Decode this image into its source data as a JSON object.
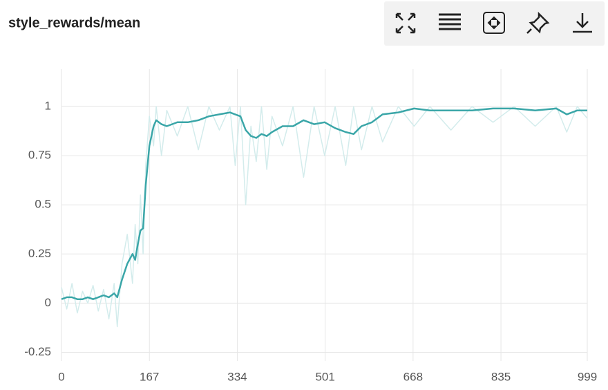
{
  "chart_data": {
    "type": "line",
    "title": "style_rewards/mean",
    "x": [
      0,
      10,
      20,
      30,
      40,
      50,
      60,
      70,
      80,
      90,
      100,
      106,
      115,
      125,
      135,
      140,
      145,
      150,
      155,
      160,
      167,
      175,
      180,
      190,
      200,
      220,
      240,
      260,
      280,
      300,
      320,
      330,
      340,
      350,
      360,
      370,
      380,
      390,
      400,
      420,
      440,
      460,
      480,
      500,
      520,
      540,
      555,
      570,
      590,
      610,
      640,
      670,
      700,
      740,
      780,
      820,
      860,
      900,
      940,
      960,
      980,
      999
    ],
    "series": [
      {
        "color": "#d3ecec",
        "values": [
          0.08,
          -0.03,
          0.1,
          -0.05,
          0.06,
          0.0,
          0.09,
          -0.04,
          0.07,
          -0.08,
          0.1,
          -0.12,
          0.2,
          0.35,
          0.1,
          0.4,
          0.2,
          0.55,
          0.25,
          0.7,
          0.95,
          0.8,
          1.0,
          0.75,
          0.98,
          0.85,
          1.0,
          0.78,
          1.0,
          0.88,
          1.0,
          0.7,
          1.0,
          0.5,
          0.9,
          0.72,
          1.0,
          0.68,
          0.95,
          0.8,
          1.0,
          0.64,
          1.0,
          0.75,
          1.0,
          0.7,
          1.0,
          0.78,
          1.0,
          0.82,
          1.0,
          0.9,
          1.0,
          0.88,
          1.0,
          0.92,
          1.0,
          0.9,
          1.0,
          0.87,
          1.0,
          0.94
        ]
      },
      {
        "color": "#3aa6a8",
        "values": [
          0.02,
          0.03,
          0.03,
          0.02,
          0.02,
          0.03,
          0.02,
          0.03,
          0.04,
          0.03,
          0.05,
          0.03,
          0.12,
          0.2,
          0.25,
          0.22,
          0.3,
          0.37,
          0.38,
          0.6,
          0.8,
          0.9,
          0.93,
          0.91,
          0.9,
          0.92,
          0.92,
          0.93,
          0.95,
          0.96,
          0.97,
          0.96,
          0.95,
          0.88,
          0.85,
          0.84,
          0.86,
          0.85,
          0.87,
          0.9,
          0.9,
          0.93,
          0.91,
          0.92,
          0.89,
          0.87,
          0.86,
          0.9,
          0.92,
          0.96,
          0.97,
          0.99,
          0.98,
          0.98,
          0.98,
          0.99,
          0.99,
          0.98,
          0.99,
          0.96,
          0.98,
          0.98
        ]
      }
    ],
    "xlim": [
      0,
      999
    ],
    "xticks": [
      0,
      167,
      334,
      501,
      668,
      835,
      999
    ],
    "ylim": [
      -0.28,
      1.19
    ],
    "yticks": [
      -0.25,
      0,
      0.25,
      0.5,
      0.75,
      1
    ],
    "grid": true
  }
}
